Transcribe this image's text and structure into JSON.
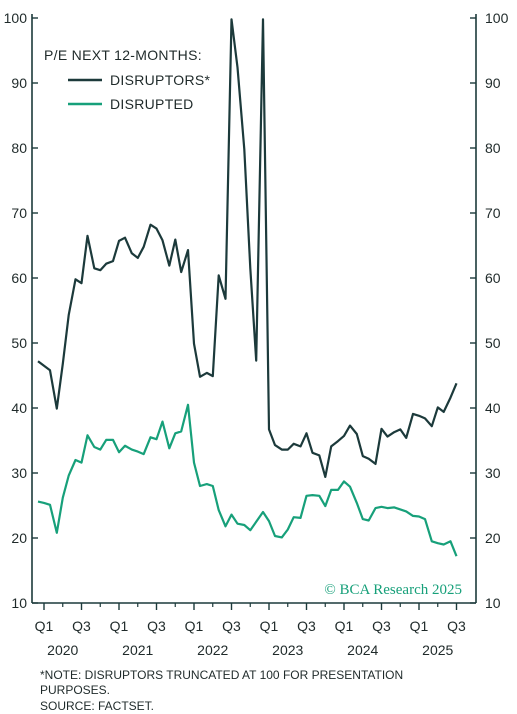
{
  "chart_data": {
    "type": "line",
    "legend_title": "P/E NEXT 12-MONTHS:",
    "legend_placement": "top-left",
    "ylim": [
      10,
      100
    ],
    "yticks": [
      10,
      20,
      30,
      40,
      50,
      60,
      70,
      80,
      90,
      100
    ],
    "x_tick_labels": [
      "Q1",
      "Q3",
      "Q1",
      "Q3",
      "Q1",
      "Q3",
      "Q1",
      "Q3",
      "Q1",
      "Q3",
      "Q1",
      "Q3"
    ],
    "x_year_labels": [
      "2020",
      "2021",
      "2022",
      "2023",
      "2024",
      "2025"
    ],
    "x_range": [
      2020.0,
      2025.75
    ],
    "grid": false,
    "series": [
      {
        "name": "DISRUPTORS*",
        "color": "#1c3a3b",
        "x": [
          2019.92,
          2020.0,
          2020.08,
          2020.17,
          2020.25,
          2020.33,
          2020.42,
          2020.5,
          2020.58,
          2020.67,
          2020.75,
          2020.83,
          2020.92,
          2021.0,
          2021.08,
          2021.17,
          2021.25,
          2021.33,
          2021.42,
          2021.5,
          2021.58,
          2021.67,
          2021.75,
          2021.83,
          2021.92,
          2022.0,
          2022.08,
          2022.17,
          2022.25,
          2022.33,
          2022.42,
          2022.5,
          2022.58,
          2022.67,
          2022.75,
          2022.83,
          2022.92,
          2023.0,
          2023.08,
          2023.17,
          2023.25,
          2023.33,
          2023.42,
          2023.5,
          2023.58,
          2023.67,
          2023.75,
          2023.83,
          2023.92,
          2024.0,
          2024.08,
          2024.17,
          2024.25,
          2024.33,
          2024.42,
          2024.5,
          2024.58,
          2024.67,
          2024.75,
          2024.83,
          2024.92,
          2025.0,
          2025.08,
          2025.17,
          2025.25,
          2025.33,
          2025.42,
          2025.5
        ],
        "values": [
          47.2,
          46.5,
          45.8,
          39.9,
          46.8,
          54.3,
          59.8,
          59.2,
          66.5,
          61.5,
          61.2,
          62.2,
          62.6,
          65.7,
          66.2,
          63.8,
          63.1,
          64.8,
          68.2,
          67.6,
          65.8,
          61.9,
          65.9,
          60.9,
          64.3,
          49.9,
          44.8,
          45.4,
          44.9,
          60.4,
          56.8,
          99.8,
          92.4,
          79.8,
          61.5,
          47.3,
          99.8,
          36.7,
          34.3,
          33.6,
          33.6,
          34.5,
          34.1,
          36.1,
          33.1,
          32.7,
          29.4,
          34.1,
          34.9,
          35.7,
          37.3,
          36.0,
          32.6,
          32.2,
          31.4,
          36.8,
          35.6,
          36.3,
          36.7,
          35.4,
          39.1,
          38.8,
          38.4,
          37.2,
          40.1,
          39.4,
          41.6,
          43.8
        ]
      },
      {
        "name": "DISRUPTED",
        "color": "#17a07a",
        "x": [
          2019.92,
          2020.0,
          2020.08,
          2020.17,
          2020.25,
          2020.33,
          2020.42,
          2020.5,
          2020.58,
          2020.67,
          2020.75,
          2020.83,
          2020.92,
          2021.0,
          2021.08,
          2021.17,
          2021.25,
          2021.33,
          2021.42,
          2021.5,
          2021.58,
          2021.67,
          2021.75,
          2021.83,
          2021.92,
          2022.0,
          2022.08,
          2022.17,
          2022.25,
          2022.33,
          2022.42,
          2022.5,
          2022.58,
          2022.67,
          2022.75,
          2022.83,
          2022.92,
          2023.0,
          2023.08,
          2023.17,
          2023.25,
          2023.33,
          2023.42,
          2023.5,
          2023.58,
          2023.67,
          2023.75,
          2023.83,
          2023.92,
          2024.0,
          2024.08,
          2024.17,
          2024.25,
          2024.33,
          2024.42,
          2024.5,
          2024.58,
          2024.67,
          2024.75,
          2024.83,
          2024.92,
          2025.0,
          2025.08,
          2025.17,
          2025.25,
          2025.33,
          2025.42,
          2025.5
        ],
        "values": [
          25.6,
          25.4,
          25.1,
          20.8,
          26.2,
          29.6,
          32.0,
          31.6,
          35.8,
          34.0,
          33.6,
          35.1,
          35.1,
          33.2,
          34.2,
          33.6,
          33.3,
          32.9,
          35.5,
          35.2,
          37.9,
          33.8,
          36.1,
          36.4,
          40.5,
          31.6,
          28.0,
          28.3,
          28.0,
          24.3,
          21.8,
          23.6,
          22.2,
          22.0,
          21.2,
          22.5,
          24.0,
          22.6,
          20.3,
          20.1,
          21.3,
          23.2,
          23.1,
          26.5,
          26.6,
          26.5,
          24.9,
          27.4,
          27.4,
          28.7,
          27.9,
          25.4,
          22.9,
          22.7,
          24.6,
          24.8,
          24.6,
          24.7,
          24.4,
          24.1,
          23.4,
          23.3,
          22.9,
          19.5,
          19.2,
          19.0,
          19.5,
          17.2
        ]
      }
    ]
  },
  "watermark": "© BCA Research 2025",
  "footnote": {
    "note": "*NOTE: DISRUPTORS TRUNCATED AT 100 FOR PRESENTATION PURPOSES.",
    "source": "SOURCE: FACTSET."
  }
}
